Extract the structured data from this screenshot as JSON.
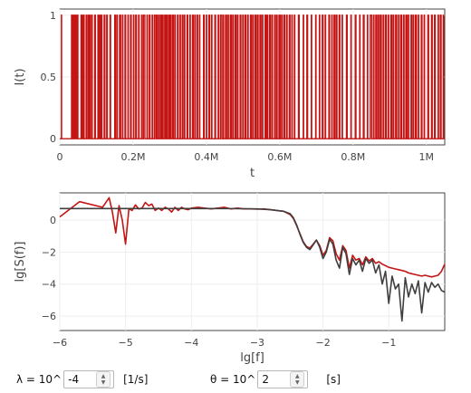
{
  "chart_data": [
    {
      "type": "line",
      "xlabel": "t",
      "ylabel": "I(t)",
      "xlim": [
        0,
        1050000
      ],
      "ylim": [
        -0.05,
        1.05
      ],
      "x_ticks": [
        0,
        200000,
        400000,
        600000,
        800000,
        1000000
      ],
      "x_tick_labels": [
        "0",
        "0.2M",
        "0.4M",
        "0.6M",
        "0.8M",
        "1M"
      ],
      "y_ticks": [
        0,
        0.5,
        1
      ],
      "y_tick_labels": [
        "0",
        "0.5",
        "1"
      ],
      "grid": true,
      "series": [
        {
          "color": "#c41414",
          "levels": [
            0,
            1
          ],
          "on_intervals": [
            [
              4500,
              5000
            ],
            [
              32000,
              32500
            ],
            [
              36000,
              37000
            ],
            [
              40000,
              41500
            ],
            [
              42500,
              43000
            ],
            [
              46000,
              47500
            ],
            [
              49000,
              49500
            ],
            [
              58000,
              59000
            ],
            [
              62000,
              63500
            ],
            [
              66000,
              66500
            ],
            [
              72000,
              74000
            ],
            [
              78000,
              78500
            ],
            [
              82000,
              84000
            ],
            [
              88000,
              88500
            ],
            [
              95000,
              97000
            ],
            [
              104000,
              105500
            ],
            [
              109000,
              109500
            ],
            [
              113000,
              115000
            ],
            [
              121000,
              123000
            ],
            [
              128000,
              129500
            ],
            [
              137000,
              138500
            ],
            [
              150000,
              152000
            ],
            [
              156000,
              157000
            ],
            [
              163000,
              166000
            ],
            [
              171000,
              172000
            ],
            [
              178000,
              179500
            ],
            [
              186000,
              187000
            ],
            [
              193000,
              195000
            ],
            [
              201000,
              202000
            ],
            [
              207000,
              209000
            ],
            [
              215000,
              216500
            ],
            [
              223000,
              224000
            ],
            [
              228000,
              232000
            ],
            [
              238000,
              239000
            ],
            [
              244000,
              246000
            ],
            [
              252000,
              253000
            ],
            [
              258000,
              262000
            ],
            [
              265000,
              266000
            ],
            [
              270000,
              272000
            ],
            [
              276000,
              278000
            ],
            [
              281000,
              282000
            ],
            [
              286000,
              288500
            ],
            [
              292000,
              293000
            ],
            [
              297000,
              300000
            ],
            [
              303000,
              304000
            ],
            [
              308000,
              310000
            ],
            [
              314000,
              315000
            ],
            [
              321000,
              323000
            ],
            [
              328000,
              329000
            ],
            [
              334000,
              336000
            ],
            [
              340000,
              341000
            ],
            [
              347000,
              349000
            ],
            [
              355000,
              356000
            ],
            [
              362000,
              364000
            ],
            [
              368000,
              369000
            ],
            [
              374000,
              376000
            ],
            [
              381000,
              382000
            ],
            [
              392000,
              394000
            ],
            [
              400000,
              401000
            ],
            [
              407000,
              409000
            ],
            [
              414000,
              415000
            ],
            [
              423000,
              425000
            ],
            [
              432000,
              433000
            ],
            [
              438000,
              442000
            ],
            [
              446000,
              447000
            ],
            [
              452000,
              455000
            ],
            [
              459000,
              460000
            ],
            [
              465000,
              468000
            ],
            [
              472000,
              473000
            ],
            [
              478000,
              481000
            ],
            [
              485000,
              486000
            ],
            [
              492000,
              494000
            ],
            [
              499000,
              500000
            ],
            [
              505000,
              508000
            ],
            [
              513000,
              514000
            ],
            [
              520000,
              523000
            ],
            [
              527000,
              528000
            ],
            [
              533000,
              536000
            ],
            [
              540000,
              541000
            ],
            [
              546000,
              549000
            ],
            [
              553000,
              554000
            ],
            [
              560000,
              563000
            ],
            [
              566000,
              567000
            ],
            [
              572000,
              575000
            ],
            [
              579000,
              580000
            ],
            [
              586000,
              588000
            ],
            [
              592000,
              593000
            ],
            [
              598000,
              601000
            ],
            [
              605000,
              606000
            ],
            [
              611000,
              614000
            ],
            [
              619000,
              620000
            ],
            [
              626000,
              628000
            ],
            [
              633000,
              634000
            ],
            [
              640000,
              641000
            ],
            [
              651000,
              653000
            ],
            [
              664000,
              665000
            ],
            [
              674000,
              676000
            ],
            [
              686000,
              687000
            ],
            [
              698000,
              699000
            ],
            [
              708000,
              709000
            ],
            [
              716000,
              718000
            ],
            [
              724000,
              725000
            ],
            [
              734000,
              736000
            ],
            [
              742000,
              743000
            ],
            [
              748000,
              751000
            ],
            [
              755000,
              756000
            ],
            [
              762000,
              764000
            ],
            [
              770000,
              771000
            ],
            [
              782000,
              784000
            ],
            [
              794000,
              795000
            ],
            [
              806000,
              808000
            ],
            [
              818000,
              819000
            ],
            [
              828000,
              830000
            ],
            [
              839000,
              840000
            ],
            [
              847000,
              851000
            ],
            [
              856000,
              857000
            ],
            [
              862000,
              865000
            ],
            [
              869000,
              870000
            ],
            [
              874000,
              877000
            ],
            [
              882000,
              883000
            ],
            [
              888000,
              891000
            ],
            [
              896000,
              897000
            ],
            [
              903000,
              906000
            ],
            [
              910000,
              911000
            ],
            [
              916000,
              919000
            ],
            [
              924000,
              925000
            ],
            [
              930000,
              933000
            ],
            [
              938000,
              939000
            ],
            [
              944000,
              947000
            ],
            [
              951000,
              952000
            ],
            [
              958000,
              960000
            ],
            [
              964000,
              965000
            ],
            [
              970000,
              973000
            ],
            [
              978000,
              979000
            ],
            [
              986000,
              988000
            ],
            [
              994000,
              995000
            ],
            [
              1004000,
              1006000
            ],
            [
              1014000,
              1016000
            ],
            [
              1022000,
              1024000
            ],
            [
              1032000,
              1033000
            ],
            [
              1038000,
              1040000
            ],
            [
              1046000,
              1047000
            ]
          ]
        }
      ]
    },
    {
      "type": "line",
      "xlabel": "lg[f]",
      "ylabel": "lg[S(f)]",
      "xlim": [
        -6,
        -0.15
      ],
      "ylim": [
        -6.9,
        1.7
      ],
      "x_ticks": [
        -6,
        -5,
        -4,
        -3,
        -2,
        -1
      ],
      "x_tick_labels": [
        "−6",
        "−5",
        "−4",
        "−3",
        "−2",
        "−1"
      ],
      "y_ticks": [
        -6,
        -4,
        -2,
        0
      ],
      "y_tick_labels": [
        "−6",
        "−4",
        "−2",
        "0"
      ],
      "grid": true,
      "series": [
        {
          "color": "#c41414",
          "x": [
            -6.0,
            -5.7,
            -5.35,
            -5.25,
            -5.2,
            -5.15,
            -5.1,
            -5.05,
            -5.0,
            -4.95,
            -4.9,
            -4.85,
            -4.8,
            -4.75,
            -4.7,
            -4.65,
            -4.6,
            -4.55,
            -4.5,
            -4.45,
            -4.4,
            -4.35,
            -4.3,
            -4.25,
            -4.2,
            -4.15,
            -4.1,
            -4.05,
            -4.0,
            -3.9,
            -3.8,
            -3.7,
            -3.6,
            -3.5,
            -3.4,
            -3.3,
            -3.2,
            -3.1,
            -3.0,
            -2.9,
            -2.8,
            -2.7,
            -2.6,
            -2.5,
            -2.45,
            -2.4,
            -2.35,
            -2.3,
            -2.25,
            -2.2,
            -2.15,
            -2.1,
            -2.05,
            -2.0,
            -1.95,
            -1.9,
            -1.85,
            -1.8,
            -1.75,
            -1.7,
            -1.65,
            -1.6,
            -1.55,
            -1.5,
            -1.45,
            -1.4,
            -1.35,
            -1.3,
            -1.25,
            -1.2,
            -1.15,
            -1.1,
            -1.05,
            -1.0,
            -0.95,
            -0.9,
            -0.85,
            -0.8,
            -0.75,
            -0.7,
            -0.65,
            -0.6,
            -0.55,
            -0.5,
            -0.45,
            -0.4,
            -0.35,
            -0.3,
            -0.25,
            -0.2,
            -0.15
          ],
          "values": [
            0.2,
            1.15,
            0.8,
            1.4,
            0.5,
            -0.8,
            0.9,
            0.0,
            -1.5,
            0.7,
            0.6,
            0.95,
            0.7,
            0.75,
            1.1,
            0.9,
            1.0,
            0.6,
            0.75,
            0.6,
            0.8,
            0.7,
            0.5,
            0.8,
            0.6,
            0.8,
            0.7,
            0.65,
            0.75,
            0.8,
            0.75,
            0.7,
            0.75,
            0.8,
            0.7,
            0.75,
            0.7,
            0.7,
            0.68,
            0.7,
            0.65,
            0.6,
            0.55,
            0.35,
            0.1,
            -0.35,
            -0.85,
            -1.35,
            -1.65,
            -1.75,
            -1.5,
            -1.25,
            -1.6,
            -2.2,
            -1.9,
            -1.1,
            -1.3,
            -2.1,
            -2.5,
            -1.6,
            -1.9,
            -3.0,
            -2.2,
            -2.5,
            -2.4,
            -2.8,
            -2.3,
            -2.55,
            -2.4,
            -2.7,
            -2.6,
            -2.75,
            -2.85,
            -2.95,
            -3.0,
            -3.05,
            -3.1,
            -3.15,
            -3.2,
            -3.3,
            -3.35,
            -3.4,
            -3.45,
            -3.5,
            -3.45,
            -3.5,
            -3.55,
            -3.5,
            -3.45,
            -3.2,
            -2.75
          ]
        },
        {
          "color": "#3f3f3f",
          "x": [
            -6.0,
            -5.5,
            -5.0,
            -4.5,
            -4.0,
            -3.5,
            -3.0,
            -2.8,
            -2.7,
            -2.6,
            -2.5,
            -2.45,
            -2.4,
            -2.35,
            -2.3,
            -2.25,
            -2.2,
            -2.15,
            -2.1,
            -2.05,
            -2.0,
            -1.95,
            -1.9,
            -1.85,
            -1.8,
            -1.75,
            -1.7,
            -1.65,
            -1.6,
            -1.55,
            -1.5,
            -1.45,
            -1.4,
            -1.35,
            -1.3,
            -1.25,
            -1.2,
            -1.15,
            -1.1,
            -1.05,
            -1.0,
            -0.95,
            -0.9,
            -0.85,
            -0.8,
            -0.75,
            -0.7,
            -0.65,
            -0.6,
            -0.55,
            -0.5,
            -0.45,
            -0.4,
            -0.35,
            -0.3,
            -0.25,
            -0.2,
            -0.15
          ],
          "values": [
            0.72,
            0.72,
            0.72,
            0.72,
            0.72,
            0.72,
            0.7,
            0.65,
            0.6,
            0.55,
            0.4,
            0.15,
            -0.3,
            -0.9,
            -1.4,
            -1.7,
            -1.85,
            -1.55,
            -1.25,
            -1.7,
            -2.4,
            -2.0,
            -1.2,
            -1.5,
            -2.5,
            -3.0,
            -1.7,
            -2.1,
            -3.4,
            -2.4,
            -2.8,
            -2.5,
            -3.2,
            -2.4,
            -2.7,
            -2.5,
            -3.3,
            -2.8,
            -4.0,
            -3.2,
            -5.2,
            -3.5,
            -4.3,
            -4.0,
            -6.3,
            -3.6,
            -4.8,
            -4.0,
            -4.6,
            -3.8,
            -5.8,
            -3.9,
            -4.5,
            -3.9,
            -4.2,
            -4.0,
            -4.4,
            -4.5
          ]
        }
      ]
    }
  ],
  "controls": {
    "lambda": {
      "label": "λ = 10^",
      "value": "-4",
      "unit": "[1/s]"
    },
    "theta": {
      "label": "θ = 10^",
      "value": "2",
      "unit": "[s]"
    }
  }
}
